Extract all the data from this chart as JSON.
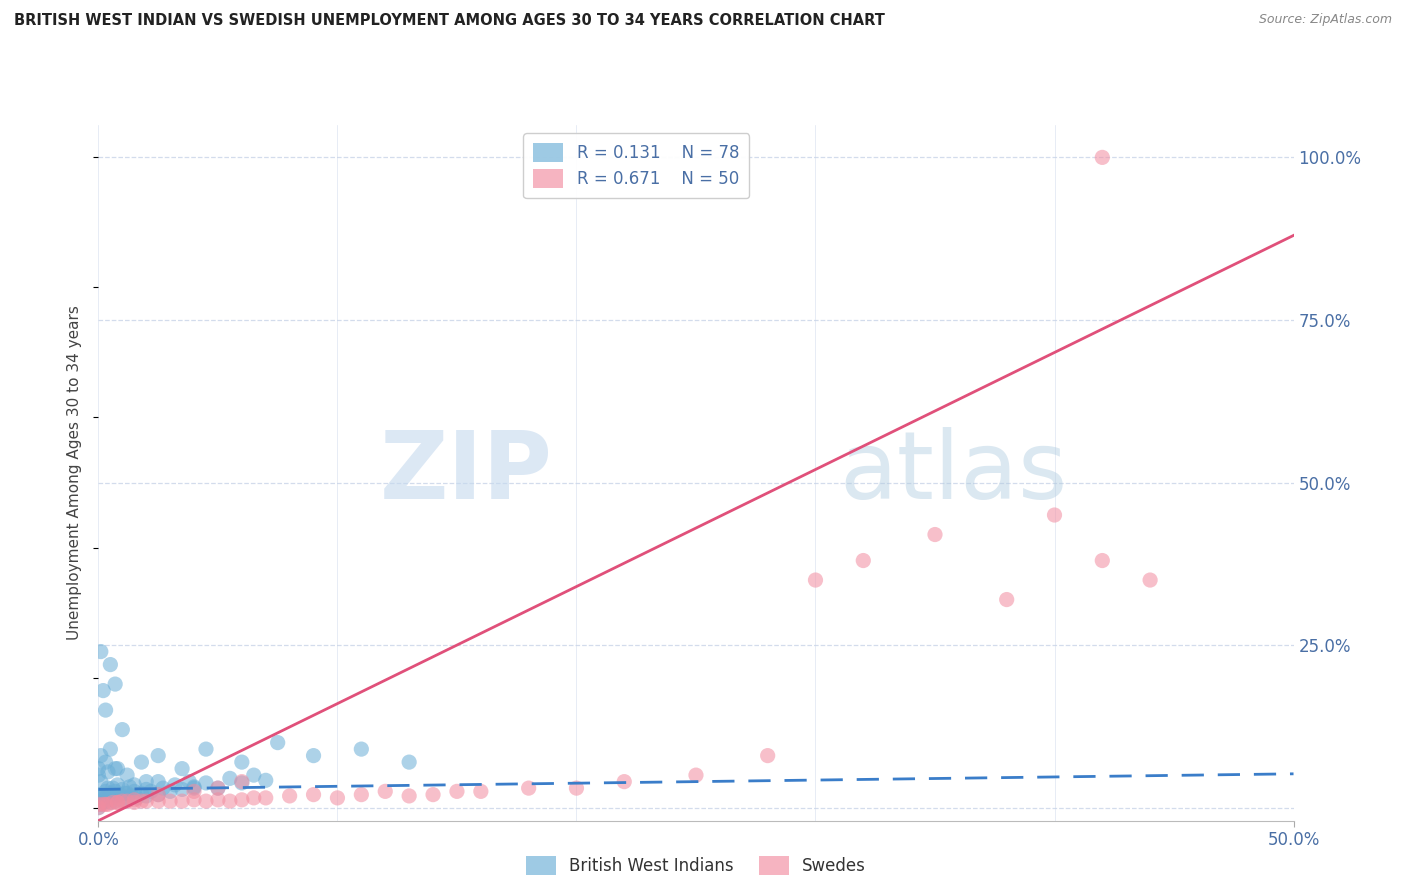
{
  "title": "BRITISH WEST INDIAN VS SWEDISH UNEMPLOYMENT AMONG AGES 30 TO 34 YEARS CORRELATION CHART",
  "source": "Source: ZipAtlas.com",
  "ylabel": "Unemployment Among Ages 30 to 34 years",
  "legend_entries": [
    {
      "label": "British West Indians",
      "R": 0.131,
      "N": 78,
      "color": "#7eb6e8"
    },
    {
      "label": "Swedes",
      "R": 0.671,
      "N": 50,
      "color": "#f4a0b0"
    }
  ],
  "bwi_color": "#6baed6",
  "swe_color": "#f28ca0",
  "bwi_line_color": "#3a7dc9",
  "swe_line_color": "#e0507a",
  "watermark_color": "#c8ddf0",
  "bg_color": "#ffffff",
  "grid_color": "#c8d4e8",
  "axis_label_color": "#4a6fa5",
  "xlim": [
    0.0,
    0.5
  ],
  "ylim": [
    -0.02,
    1.05
  ],
  "bwi_x": [
    0.0,
    0.0,
    0.0,
    0.001,
    0.001,
    0.002,
    0.002,
    0.003,
    0.003,
    0.004,
    0.004,
    0.005,
    0.005,
    0.006,
    0.006,
    0.007,
    0.007,
    0.008,
    0.008,
    0.009,
    0.01,
    0.01,
    0.011,
    0.012,
    0.013,
    0.014,
    0.015,
    0.016,
    0.018,
    0.02,
    0.022,
    0.025,
    0.027,
    0.03,
    0.032,
    0.035,
    0.038,
    0.04,
    0.045,
    0.05,
    0.055,
    0.06,
    0.065,
    0.07,
    0.001,
    0.002,
    0.003,
    0.005,
    0.007,
    0.01,
    0.0,
    0.001,
    0.003,
    0.005,
    0.008,
    0.012,
    0.018,
    0.025,
    0.035,
    0.045,
    0.06,
    0.075,
    0.09,
    0.11,
    0.13,
    0.04,
    0.02,
    0.015,
    0.025,
    0.008,
    0.003,
    0.006,
    0.012,
    0.02,
    0.0,
    0.001,
    0.004,
    0.007
  ],
  "bwi_y": [
    0.0,
    0.01,
    0.02,
    0.005,
    0.015,
    0.008,
    0.02,
    0.01,
    0.025,
    0.012,
    0.03,
    0.008,
    0.022,
    0.015,
    0.03,
    0.01,
    0.025,
    0.018,
    0.035,
    0.02,
    0.012,
    0.028,
    0.022,
    0.015,
    0.032,
    0.018,
    0.025,
    0.015,
    0.022,
    0.018,
    0.025,
    0.02,
    0.03,
    0.025,
    0.035,
    0.028,
    0.04,
    0.032,
    0.038,
    0.03,
    0.045,
    0.038,
    0.05,
    0.042,
    0.24,
    0.18,
    0.15,
    0.22,
    0.19,
    0.12,
    0.06,
    0.08,
    0.07,
    0.09,
    0.06,
    0.05,
    0.07,
    0.08,
    0.06,
    0.09,
    0.07,
    0.1,
    0.08,
    0.09,
    0.07,
    0.03,
    0.04,
    0.035,
    0.04,
    0.02,
    0.015,
    0.018,
    0.022,
    0.028,
    0.05,
    0.04,
    0.055,
    0.06
  ],
  "swe_x": [
    0.0,
    0.002,
    0.004,
    0.006,
    0.008,
    0.01,
    0.012,
    0.015,
    0.018,
    0.02,
    0.025,
    0.03,
    0.035,
    0.04,
    0.045,
    0.05,
    0.055,
    0.06,
    0.065,
    0.07,
    0.08,
    0.09,
    0.1,
    0.11,
    0.12,
    0.13,
    0.14,
    0.15,
    0.16,
    0.18,
    0.2,
    0.22,
    0.25,
    0.28,
    0.3,
    0.32,
    0.35,
    0.38,
    0.4,
    0.42,
    0.44,
    0.0,
    0.003,
    0.008,
    0.015,
    0.025,
    0.04,
    0.06,
    0.42,
    0.05
  ],
  "swe_y": [
    0.005,
    0.005,
    0.005,
    0.008,
    0.008,
    0.01,
    0.01,
    0.008,
    0.01,
    0.01,
    0.01,
    0.01,
    0.01,
    0.012,
    0.01,
    0.012,
    0.01,
    0.012,
    0.015,
    0.015,
    0.018,
    0.02,
    0.015,
    0.02,
    0.025,
    0.018,
    0.02,
    0.025,
    0.025,
    0.03,
    0.03,
    0.04,
    0.05,
    0.08,
    0.35,
    0.38,
    0.42,
    0.32,
    0.45,
    0.38,
    0.35,
    0.0,
    0.005,
    0.008,
    0.012,
    0.02,
    0.025,
    0.04,
    1.0,
    0.03
  ],
  "bwi_trend": [
    0.0,
    0.5,
    0.028,
    0.052
  ],
  "swe_trend": [
    0.0,
    0.5,
    -0.02,
    0.88
  ]
}
